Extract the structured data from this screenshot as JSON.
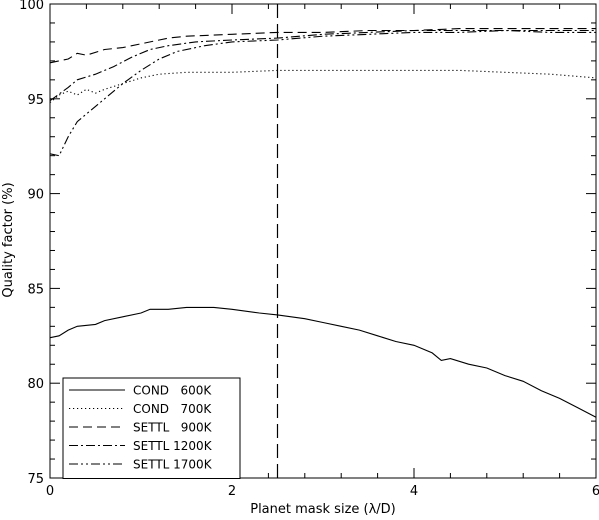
{
  "chart_data": {
    "type": "line",
    "title": "",
    "xlabel": "Planet mask size (λ/D)",
    "ylabel": "Quality factor (%)",
    "xlim": [
      0,
      6
    ],
    "ylim": [
      75,
      100
    ],
    "x_ticks": [
      "0",
      "2",
      "4",
      "6"
    ],
    "y_ticks": [
      "75",
      "80",
      "85",
      "90",
      "95",
      "100"
    ],
    "grid": false,
    "legend_position": "bottom-left",
    "reference_line": {
      "x": 2.5,
      "style": "long-dash"
    },
    "series": [
      {
        "name": "COND   600K",
        "dash": "solid",
        "points": [
          [
            0.0,
            82.4
          ],
          [
            0.1,
            82.5
          ],
          [
            0.2,
            82.8
          ],
          [
            0.3,
            83.0
          ],
          [
            0.5,
            83.1
          ],
          [
            0.6,
            83.3
          ],
          [
            0.8,
            83.5
          ],
          [
            1.0,
            83.7
          ],
          [
            1.1,
            83.9
          ],
          [
            1.3,
            83.9
          ],
          [
            1.5,
            84.0
          ],
          [
            1.8,
            84.0
          ],
          [
            2.0,
            83.9
          ],
          [
            2.3,
            83.7
          ],
          [
            2.5,
            83.6
          ],
          [
            2.8,
            83.4
          ],
          [
            3.0,
            83.2
          ],
          [
            3.2,
            83.0
          ],
          [
            3.4,
            82.8
          ],
          [
            3.6,
            82.5
          ],
          [
            3.8,
            82.2
          ],
          [
            4.0,
            82.0
          ],
          [
            4.2,
            81.6
          ],
          [
            4.3,
            81.2
          ],
          [
            4.4,
            81.3
          ],
          [
            4.6,
            81.0
          ],
          [
            4.8,
            80.8
          ],
          [
            5.0,
            80.4
          ],
          [
            5.2,
            80.1
          ],
          [
            5.4,
            79.6
          ],
          [
            5.6,
            79.2
          ],
          [
            5.8,
            78.7
          ],
          [
            6.0,
            78.2
          ]
        ]
      },
      {
        "name": "COND   700K",
        "dash": "dotted",
        "points": [
          [
            0.0,
            94.8
          ],
          [
            0.1,
            95.2
          ],
          [
            0.2,
            95.4
          ],
          [
            0.3,
            95.2
          ],
          [
            0.4,
            95.5
          ],
          [
            0.5,
            95.3
          ],
          [
            0.6,
            95.5
          ],
          [
            0.8,
            95.8
          ],
          [
            1.0,
            96.1
          ],
          [
            1.2,
            96.3
          ],
          [
            1.5,
            96.4
          ],
          [
            2.0,
            96.4
          ],
          [
            2.5,
            96.5
          ],
          [
            3.0,
            96.5
          ],
          [
            3.5,
            96.5
          ],
          [
            4.0,
            96.5
          ],
          [
            4.5,
            96.5
          ],
          [
            5.0,
            96.4
          ],
          [
            5.5,
            96.3
          ],
          [
            6.0,
            96.1
          ]
        ]
      },
      {
        "name": "SETTL   900K",
        "dash": "dashed",
        "points": [
          [
            0.0,
            96.9
          ],
          [
            0.2,
            97.1
          ],
          [
            0.3,
            97.4
          ],
          [
            0.4,
            97.3
          ],
          [
            0.6,
            97.6
          ],
          [
            0.8,
            97.7
          ],
          [
            1.0,
            97.9
          ],
          [
            1.3,
            98.2
          ],
          [
            1.5,
            98.3
          ],
          [
            2.0,
            98.4
          ],
          [
            2.5,
            98.5
          ],
          [
            3.0,
            98.5
          ],
          [
            3.5,
            98.6
          ],
          [
            4.0,
            98.6
          ],
          [
            4.5,
            98.7
          ],
          [
            5.0,
            98.7
          ],
          [
            5.5,
            98.7
          ],
          [
            6.0,
            98.7
          ]
        ]
      },
      {
        "name": "SETTL 1200K",
        "dash": "dash-dot",
        "points": [
          [
            0.0,
            94.9
          ],
          [
            0.2,
            95.6
          ],
          [
            0.3,
            96.0
          ],
          [
            0.5,
            96.3
          ],
          [
            0.7,
            96.7
          ],
          [
            0.9,
            97.2
          ],
          [
            1.1,
            97.6
          ],
          [
            1.3,
            97.8
          ],
          [
            1.6,
            98.0
          ],
          [
            2.0,
            98.1
          ],
          [
            2.5,
            98.2
          ],
          [
            3.0,
            98.4
          ],
          [
            3.5,
            98.5
          ],
          [
            4.0,
            98.6
          ],
          [
            4.5,
            98.6
          ],
          [
            5.0,
            98.6
          ],
          [
            5.5,
            98.6
          ],
          [
            6.0,
            98.6
          ]
        ]
      },
      {
        "name": "SETTL 1700K",
        "dash": "dash-dot-dot",
        "points": [
          [
            0.0,
            92.1
          ],
          [
            0.1,
            92.0
          ],
          [
            0.2,
            93.0
          ],
          [
            0.3,
            93.8
          ],
          [
            0.4,
            94.2
          ],
          [
            0.6,
            95.0
          ],
          [
            0.8,
            95.8
          ],
          [
            1.0,
            96.5
          ],
          [
            1.2,
            97.1
          ],
          [
            1.4,
            97.5
          ],
          [
            1.7,
            97.8
          ],
          [
            2.0,
            98.0
          ],
          [
            2.5,
            98.1
          ],
          [
            3.0,
            98.3
          ],
          [
            3.5,
            98.4
          ],
          [
            4.0,
            98.5
          ],
          [
            4.5,
            98.5
          ],
          [
            5.0,
            98.6
          ],
          [
            5.5,
            98.5
          ],
          [
            6.0,
            98.5
          ]
        ]
      }
    ]
  }
}
